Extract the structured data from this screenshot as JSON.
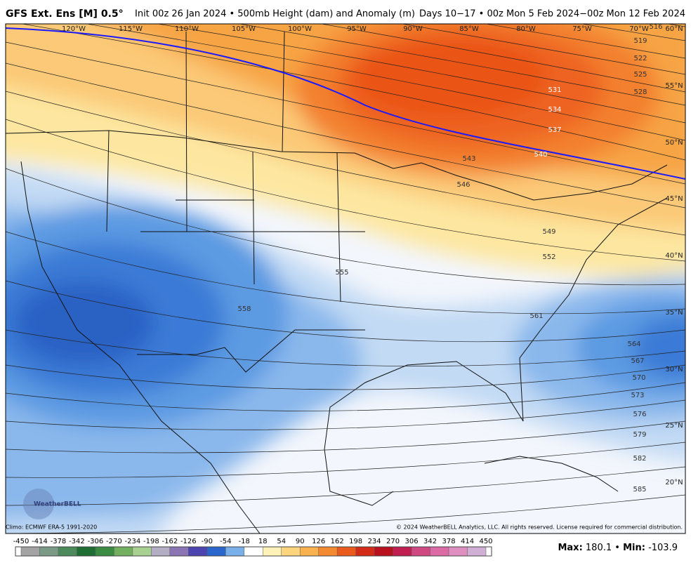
{
  "header": {
    "title": "GFS Ext.  Ens [M] 0.5°",
    "init": "Init 00z 26 Jan 2024 • 500mb Height (dam) and Anomaly (m)",
    "valid": "Days 10−17 • 00z Mon 5 Feb 2024−00z Mon 12 Feb 2024"
  },
  "map": {
    "longitude_labels": [
      "120°W",
      "115°W",
      "110°W",
      "105°W",
      "100°W",
      "95°W",
      "90°W",
      "85°W",
      "80°W",
      "75°W",
      "70°W"
    ],
    "latitude_labels": [
      "60°N",
      "55°N",
      "50°N",
      "45°N",
      "40°N",
      "35°N",
      "30°N",
      "25°N",
      "20°N"
    ],
    "contour_labels": [
      516,
      519,
      522,
      525,
      528,
      531,
      534,
      537,
      540,
      543,
      546,
      549,
      552,
      555,
      558,
      561,
      564,
      567,
      570,
      573,
      576,
      579,
      582,
      585
    ]
  },
  "footer": {
    "climo": "Climo: ECMWF ERA-5 1991-2020",
    "copyright": "© 2024 WeatherBELL Analytics, LLC. All rights reserved. License required for commercial distribution.",
    "logo": "WeatherBELL"
  },
  "colorbar": {
    "ticks": [
      -450,
      -414,
      -378,
      -342,
      -306,
      -270,
      -234,
      -198,
      -162,
      -126,
      -90,
      -54,
      -18,
      18,
      54,
      90,
      126,
      162,
      198,
      234,
      270,
      306,
      342,
      378,
      414,
      450
    ],
    "colors": [
      "#a3a3a3",
      "#7a9a86",
      "#4c8a5c",
      "#1f6e34",
      "#3a8c42",
      "#72b060",
      "#a8d090",
      "#b4aec4",
      "#8a74b4",
      "#4c44b0",
      "#2a66cc",
      "#7ab0ea",
      "#ffffff",
      "#fff2b8",
      "#fdd57c",
      "#f9b24e",
      "#f38a32",
      "#ea5a1c",
      "#d42a18",
      "#b8101c",
      "#c01e50",
      "#d04880",
      "#dc6aa4",
      "#e090c0",
      "#d0b0d4"
    ]
  },
  "stats": {
    "max_label": "Max:",
    "max": 180.1,
    "separator": "•",
    "min_label": "Min:",
    "min": -103.9
  }
}
